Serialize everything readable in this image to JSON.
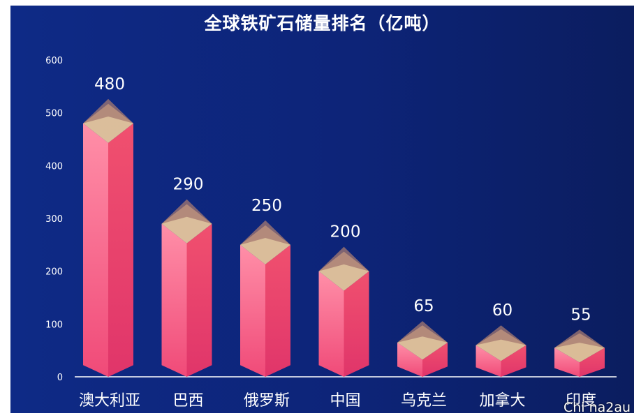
{
  "chart_data": {
    "type": "bar",
    "title": "全球铁矿石储量排名（亿吨）",
    "categories": [
      "澳大利亚",
      "巴西",
      "俄罗斯",
      "中国",
      "乌克兰",
      "加拿大",
      "印度"
    ],
    "values": [
      480,
      290,
      250,
      200,
      65,
      60,
      55
    ],
    "yticks": [
      0,
      100,
      200,
      300,
      400,
      500,
      600
    ],
    "ylim": [
      0,
      600
    ],
    "grid": false,
    "data_labels": true,
    "colors": {
      "bar_top": "#ff8fa8",
      "bar_bottom": "#f04a78",
      "bar_side": "#e8386a",
      "cap_light": "#ffd8a0",
      "cap_dark": "#a67a70",
      "text": "#ffffff"
    }
  },
  "watermark": "Chi na2au"
}
